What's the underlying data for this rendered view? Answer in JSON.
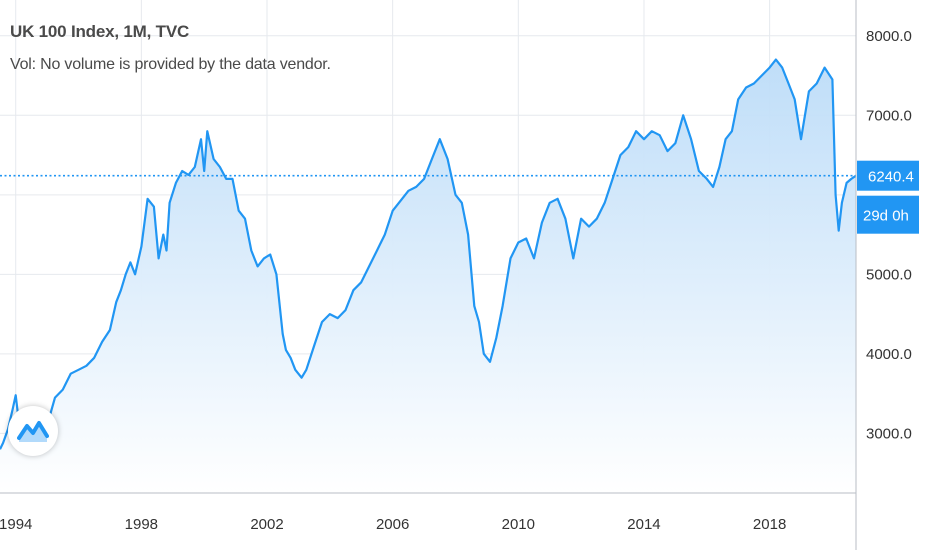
{
  "legend": {
    "title": "UK 100 Index, 1M, TVC",
    "vol": "Vol: No volume is provided by the data vendor."
  },
  "colors": {
    "line": "#2196f3",
    "area_top": "#bcdcf8",
    "area_bottom": "#ffffff",
    "grid": "#e6e9ee",
    "axis_text": "#333333",
    "badge_bg": "#2196f3",
    "badge_text": "#ffffff"
  },
  "price_badge": {
    "price": "6240.4",
    "countdown": "29d 0h"
  },
  "logo": {
    "icon": "tradingview-wave-icon"
  },
  "chart_data": {
    "type": "area",
    "title": "UK 100 Index, 1M, TVC",
    "xlabel": "",
    "ylabel": "",
    "xlim": [
      1993.5,
      2020.75
    ],
    "ylim": [
      2250,
      8450
    ],
    "x_ticks": [
      1994,
      1998,
      2002,
      2006,
      2010,
      2014,
      2018
    ],
    "x_tick_labels": [
      "1994",
      "1998",
      "2002",
      "2006",
      "2010",
      "2014",
      "2018"
    ],
    "y_ticks": [
      3000,
      4000,
      5000,
      6000,
      7000,
      8000
    ],
    "y_tick_labels": [
      "3000.0",
      "4000.0",
      "5000.0",
      "",
      "7000.0",
      "8000.0"
    ],
    "grid": true,
    "current_price": 6240.4,
    "x": [
      1993.5,
      1993.6,
      1993.75,
      1993.9,
      1994.0,
      1994.1,
      1994.2,
      1994.35,
      1994.5,
      1994.65,
      1994.8,
      1995.0,
      1995.25,
      1995.5,
      1995.75,
      1996.0,
      1996.25,
      1996.5,
      1996.75,
      1997.0,
      1997.2,
      1997.35,
      1997.5,
      1997.65,
      1997.8,
      1998.0,
      1998.2,
      1998.4,
      1998.55,
      1998.7,
      1998.8,
      1998.9,
      1999.1,
      1999.3,
      1999.5,
      1999.7,
      1999.9,
      2000.0,
      2000.1,
      2000.3,
      2000.5,
      2000.7,
      2000.9,
      2001.1,
      2001.3,
      2001.5,
      2001.7,
      2001.9,
      2002.1,
      2002.3,
      2002.5,
      2002.6,
      2002.75,
      2002.9,
      2003.1,
      2003.25,
      2003.5,
      2003.75,
      2004.0,
      2004.25,
      2004.5,
      2004.75,
      2005.0,
      2005.25,
      2005.5,
      2005.75,
      2006.0,
      2006.3,
      2006.5,
      2006.75,
      2007.0,
      2007.25,
      2007.5,
      2007.75,
      2008.0,
      2008.2,
      2008.4,
      2008.6,
      2008.75,
      2008.9,
      2009.1,
      2009.3,
      2009.5,
      2009.75,
      2010.0,
      2010.25,
      2010.5,
      2010.75,
      2011.0,
      2011.25,
      2011.5,
      2011.75,
      2012.0,
      2012.25,
      2012.5,
      2012.75,
      2013.0,
      2013.25,
      2013.5,
      2013.75,
      2014.0,
      2014.25,
      2014.5,
      2014.75,
      2015.0,
      2015.25,
      2015.5,
      2015.75,
      2016.0,
      2016.2,
      2016.4,
      2016.6,
      2016.8,
      2017.0,
      2017.25,
      2017.5,
      2017.75,
      2018.0,
      2018.2,
      2018.4,
      2018.6,
      2018.8,
      2019.0,
      2019.25,
      2019.5,
      2019.75,
      2020.0,
      2020.1,
      2020.2,
      2020.3,
      2020.45,
      2020.6,
      2020.75
    ],
    "y": [
      2800,
      2880,
      3050,
      3300,
      3480,
      3150,
      2950,
      3050,
      2900,
      3050,
      3200,
      3100,
      3450,
      3550,
      3750,
      3800,
      3850,
      3950,
      4150,
      4300,
      4650,
      4800,
      5000,
      5150,
      5000,
      5350,
      5950,
      5850,
      5200,
      5500,
      5300,
      5900,
      6150,
      6300,
      6250,
      6350,
      6700,
      6300,
      6800,
      6450,
      6350,
      6200,
      6200,
      5800,
      5700,
      5300,
      5100,
      5200,
      5250,
      5000,
      4250,
      4050,
      3950,
      3800,
      3700,
      3800,
      4100,
      4400,
      4500,
      4450,
      4550,
      4800,
      4900,
      5100,
      5300,
      5500,
      5800,
      5950,
      6050,
      6100,
      6200,
      6450,
      6700,
      6450,
      6000,
      5900,
      5500,
      4600,
      4400,
      4000,
      3900,
      4200,
      4600,
      5200,
      5400,
      5450,
      5200,
      5650,
      5900,
      5950,
      5700,
      5200,
      5700,
      5600,
      5700,
      5900,
      6200,
      6500,
      6600,
      6800,
      6700,
      6800,
      6750,
      6550,
      6650,
      7000,
      6700,
      6300,
      6200,
      6100,
      6350,
      6700,
      6800,
      7200,
      7350,
      7400,
      7500,
      7600,
      7700,
      7600,
      7400,
      7200,
      6700,
      7300,
      7400,
      7600,
      7450,
      6000,
      5550,
      5900,
      6150,
      6200,
      6240.4
    ]
  }
}
